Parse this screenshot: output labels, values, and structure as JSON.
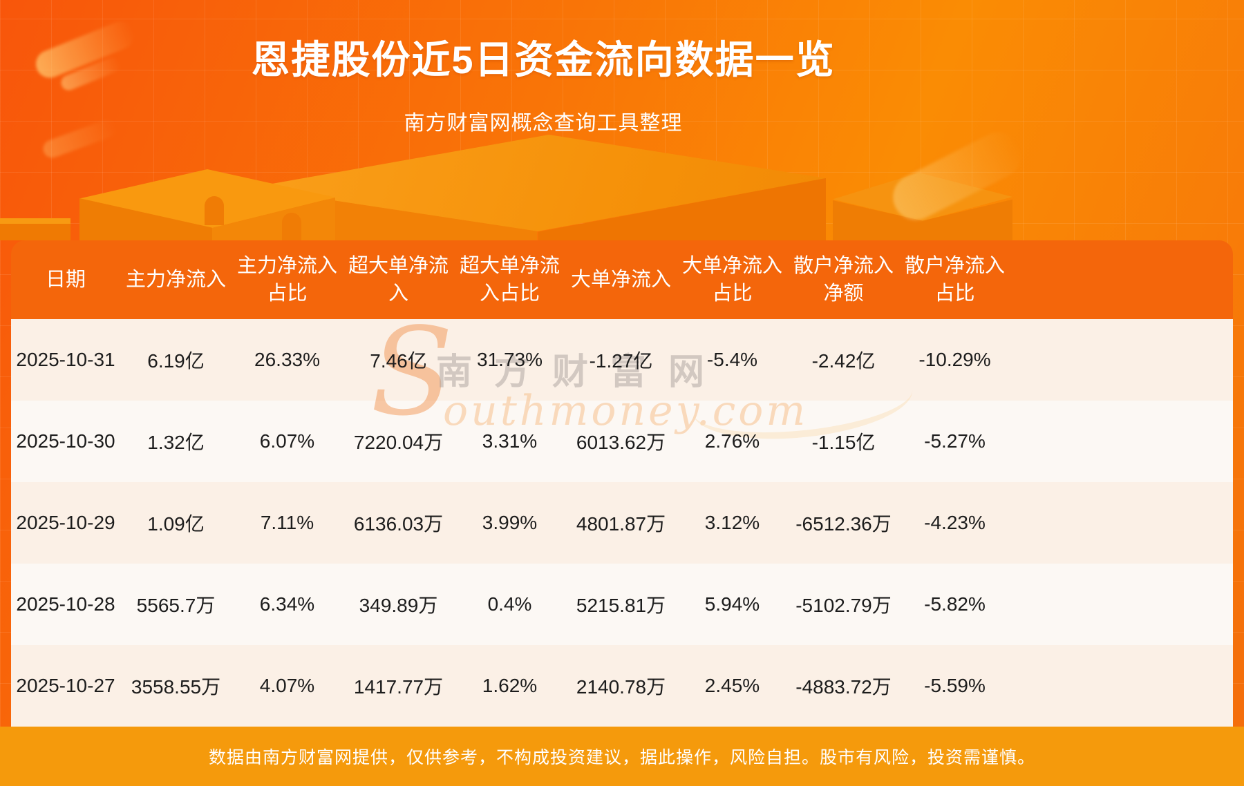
{
  "page": {
    "title": "恩捷股份近5日资金流向数据一览",
    "subtitle": "南方财富网概念查询工具整理"
  },
  "table": {
    "headers": [
      "日期",
      "主力净流入",
      "主力净流入占比",
      "超大单净流入",
      "超大单净流入占比",
      "大单净流入",
      "大单净流入占比",
      "散户净流入净额",
      "散户净流入占比"
    ],
    "rows": [
      [
        "2025-10-31",
        "6.19亿",
        "26.33%",
        "7.46亿",
        "31.73%",
        "-1.27亿",
        "-5.4%",
        "-2.42亿",
        "-10.29%"
      ],
      [
        "2025-10-30",
        "1.32亿",
        "6.07%",
        "7220.04万",
        "3.31%",
        "6013.62万",
        "2.76%",
        "-1.15亿",
        "-5.27%"
      ],
      [
        "2025-10-29",
        "1.09亿",
        "7.11%",
        "6136.03万",
        "3.99%",
        "4801.87万",
        "3.12%",
        "-6512.36万",
        "-4.23%"
      ],
      [
        "2025-10-28",
        "5565.7万",
        "6.34%",
        "349.89万",
        "0.4%",
        "5215.81万",
        "5.94%",
        "-5102.79万",
        "-5.82%"
      ],
      [
        "2025-10-27",
        "3558.55万",
        "4.07%",
        "1417.77万",
        "1.62%",
        "2140.78万",
        "2.45%",
        "-4883.72万",
        "-5.59%"
      ]
    ]
  },
  "watermark": {
    "initial": "S",
    "cn": "南方财富网",
    "en": "outhmoney.com"
  },
  "footer": {
    "disclaimer": "数据由南方财富网提供，仅供参考，不构成投资建议，据此操作，风险自担。股市有风险，投资需谨慎。"
  },
  "colors": {
    "background_orange": "#f97a06",
    "header_bg": "#f4660b",
    "row_cream": "#fbf0e6",
    "row_light": "#fcf8f4",
    "footer_bg": "#f59a0c",
    "podium_top": "#fa9f1a",
    "podium_front": "#ee7502",
    "text_dark": "#1c1c1c",
    "text_white": "#ffffff"
  },
  "chart_data": {
    "type": "table",
    "title": "恩捷股份近5日资金流向数据一览",
    "columns": [
      "日期",
      "主力净流入",
      "主力净流入占比",
      "超大单净流入",
      "超大单净流入占比",
      "大单净流入",
      "大单净流入占比",
      "散户净流入净额",
      "散户净流入占比"
    ],
    "rows": [
      [
        "2025-10-31",
        "6.19亿",
        "26.33%",
        "7.46亿",
        "31.73%",
        "-1.27亿",
        "-5.4%",
        "-2.42亿",
        "-10.29%"
      ],
      [
        "2025-10-30",
        "1.32亿",
        "6.07%",
        "7220.04万",
        "3.31%",
        "6013.62万",
        "2.76%",
        "-1.15亿",
        "-5.27%"
      ],
      [
        "2025-10-29",
        "1.09亿",
        "7.11%",
        "6136.03万",
        "3.99%",
        "4801.87万",
        "3.12%",
        "-6512.36万",
        "-4.23%"
      ],
      [
        "2025-10-28",
        "5565.7万",
        "6.34%",
        "349.89万",
        "0.4%",
        "5215.81万",
        "5.94%",
        "-5102.79万",
        "-5.82%"
      ],
      [
        "2025-10-27",
        "3558.55万",
        "4.07%",
        "1417.77万",
        "1.62%",
        "2140.78万",
        "2.45%",
        "-4883.72万",
        "-5.59%"
      ]
    ]
  }
}
